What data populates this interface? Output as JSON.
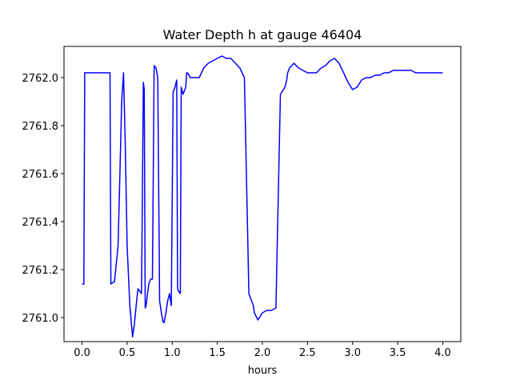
{
  "chart_data": {
    "type": "line",
    "title": "Water Depth h at gauge 46404",
    "xlabel": "hours",
    "ylabel": "",
    "xlim": [
      -0.2,
      4.2
    ],
    "ylim": [
      2760.9,
      2762.13
    ],
    "grid": false,
    "legend": "none",
    "x_ticks": [
      0.0,
      0.5,
      1.0,
      1.5,
      2.0,
      2.5,
      3.0,
      3.5,
      4.0
    ],
    "x_tick_labels": [
      "0.0",
      "0.5",
      "1.0",
      "1.5",
      "2.0",
      "2.5",
      "3.0",
      "3.5",
      "4.0"
    ],
    "y_ticks": [
      2761.0,
      2761.2,
      2761.4,
      2761.6,
      2761.8,
      2762.0
    ],
    "y_tick_labels": [
      "2761.0",
      "2761.2",
      "2761.4",
      "2761.6",
      "2761.8",
      "2762.0"
    ],
    "series": [
      {
        "color": "#0000ff",
        "x": [
          0.0,
          0.02,
          0.03,
          0.1,
          0.2,
          0.31,
          0.32,
          0.36,
          0.4,
          0.42,
          0.44,
          0.46,
          0.48,
          0.5,
          0.53,
          0.56,
          0.58,
          0.6,
          0.62,
          0.64,
          0.66,
          0.68,
          0.69,
          0.7,
          0.71,
          0.72,
          0.74,
          0.76,
          0.78,
          0.8,
          0.82,
          0.84,
          0.86,
          0.88,
          0.9,
          0.91,
          0.93,
          0.95,
          0.97,
          0.99,
          1.01,
          1.03,
          1.05,
          1.06,
          1.07,
          1.09,
          1.1,
          1.12,
          1.13,
          1.15,
          1.16,
          1.17,
          1.2,
          1.25,
          1.3,
          1.35,
          1.4,
          1.45,
          1.5,
          1.55,
          1.6,
          1.65,
          1.7,
          1.75,
          1.8,
          1.85,
          1.9,
          1.91,
          1.95,
          2.0,
          2.05,
          2.1,
          2.15,
          2.2,
          2.25,
          2.27,
          2.28,
          2.3,
          2.35,
          2.4,
          2.45,
          2.5,
          2.55,
          2.6,
          2.65,
          2.7,
          2.75,
          2.8,
          2.85,
          2.9,
          2.95,
          3.0,
          3.05,
          3.1,
          3.15,
          3.2,
          3.25,
          3.3,
          3.35,
          3.4,
          3.45,
          3.5,
          3.55,
          3.6,
          3.65,
          3.7,
          3.75,
          3.8,
          3.85,
          3.9,
          3.95,
          4.0
        ],
        "y": [
          2761.14,
          2761.14,
          2762.02,
          2762.02,
          2762.02,
          2762.02,
          2761.14,
          2761.15,
          2761.3,
          2761.6,
          2761.9,
          2762.02,
          2761.7,
          2761.3,
          2761.05,
          2760.92,
          2760.97,
          2761.05,
          2761.12,
          2761.11,
          2761.1,
          2761.98,
          2761.95,
          2761.04,
          2761.05,
          2761.08,
          2761.14,
          2761.16,
          2761.16,
          2762.05,
          2762.04,
          2762.0,
          2761.07,
          2761.02,
          2760.98,
          2760.98,
          2761.02,
          2761.07,
          2761.1,
          2761.05,
          2761.94,
          2761.96,
          2761.99,
          2761.12,
          2761.11,
          2761.1,
          2761.96,
          2761.93,
          2761.94,
          2761.96,
          2762.02,
          2762.02,
          2762.0,
          2762.0,
          2762.0,
          2762.04,
          2762.06,
          2762.07,
          2762.08,
          2762.09,
          2762.08,
          2762.08,
          2762.06,
          2762.04,
          2762.0,
          2761.1,
          2761.05,
          2761.02,
          2760.99,
          2761.02,
          2761.03,
          2761.03,
          2761.04,
          2761.93,
          2761.96,
          2761.99,
          2762.02,
          2762.04,
          2762.06,
          2762.04,
          2762.03,
          2762.02,
          2762.02,
          2762.02,
          2762.04,
          2762.05,
          2762.07,
          2762.08,
          2762.06,
          2762.02,
          2761.98,
          2761.95,
          2761.96,
          2761.99,
          2762.0,
          2762.0,
          2762.01,
          2762.01,
          2762.02,
          2762.02,
          2762.03,
          2762.03,
          2762.03,
          2762.03,
          2762.03,
          2762.02,
          2762.02,
          2762.02,
          2762.02,
          2762.02,
          2762.02,
          2762.02
        ]
      }
    ]
  }
}
